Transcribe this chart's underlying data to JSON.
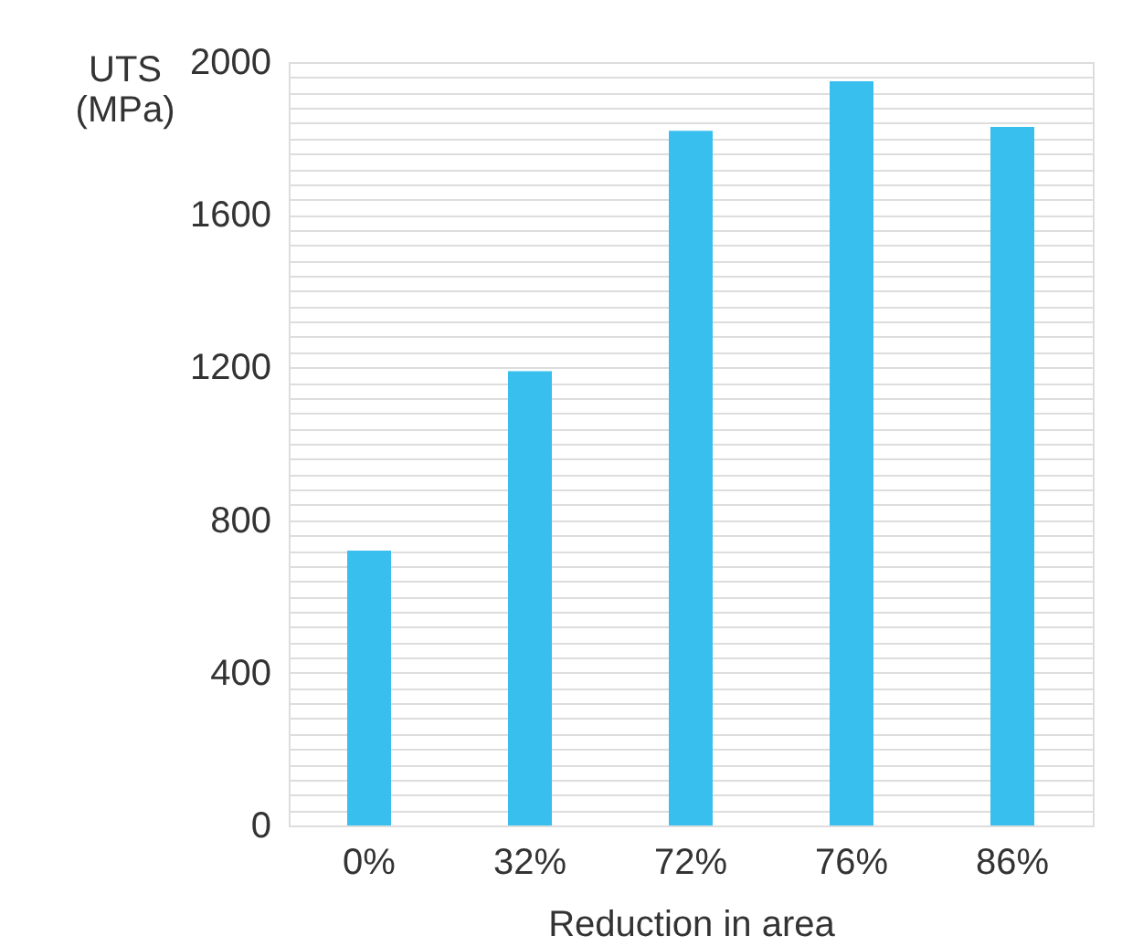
{
  "chart_data": {
    "type": "bar",
    "xlabel": "Reduction in area",
    "ylabel": "UTS\n(MPa)",
    "categories": [
      "0%",
      "32%",
      "72%",
      "76%",
      "86%"
    ],
    "values": [
      720,
      1190,
      1820,
      1950,
      1830
    ],
    "color": "#38bfed",
    "ylim": [
      0,
      2000
    ],
    "yticks": [
      0,
      {
        "value": 40,
        "label": null
      },
      {
        "value": 80,
        "label": null
      },
      {
        "value": 120,
        "label": null
      },
      {
        "value": 160,
        "label": null
      },
      {
        "value": 200,
        "label": null
      },
      {
        "value": 240,
        "label": null
      },
      {
        "value": 280,
        "label": null
      },
      {
        "value": 320,
        "label": null
      },
      {
        "value": 360,
        "label": null
      },
      400,
      {
        "value": 440,
        "label": null
      },
      {
        "value": 480,
        "label": null
      },
      {
        "value": 520,
        "label": null
      },
      {
        "value": 560,
        "label": null
      },
      {
        "value": 600,
        "label": null
      },
      {
        "value": 640,
        "label": null
      },
      {
        "value": 680,
        "label": null
      },
      {
        "value": 720,
        "label": null
      },
      {
        "value": 760,
        "label": null
      },
      800,
      {
        "value": 840,
        "label": null
      },
      {
        "value": 880,
        "label": null
      },
      {
        "value": 920,
        "label": null
      },
      {
        "value": 960,
        "label": null
      },
      {
        "value": 1000,
        "label": null
      },
      {
        "value": 1040,
        "label": null
      },
      {
        "value": 1080,
        "label": null
      },
      {
        "value": 1120,
        "label": null
      },
      {
        "value": 1160,
        "label": null
      },
      1200,
      {
        "value": 1240,
        "label": null
      },
      {
        "value": 1280,
        "label": null
      },
      {
        "value": 1320,
        "label": null
      },
      {
        "value": 1360,
        "label": null
      },
      {
        "value": 1400,
        "label": null
      },
      {
        "value": 1440,
        "label": null
      },
      {
        "value": 1480,
        "label": null
      },
      {
        "value": 1520,
        "label": null
      },
      {
        "value": 1560,
        "label": null
      },
      1600,
      {
        "value": 1640,
        "label": null
      },
      {
        "value": 1680,
        "label": null
      },
      {
        "value": 1720,
        "label": null
      },
      {
        "value": 1760,
        "label": null
      },
      {
        "value": 1800,
        "label": null
      },
      {
        "value": 1840,
        "label": null
      },
      {
        "value": 1880,
        "label": null
      },
      {
        "value": 1920,
        "label": null
      },
      {
        "value": 1960,
        "label": null
      },
      2000
    ],
    "grid": "y"
  }
}
